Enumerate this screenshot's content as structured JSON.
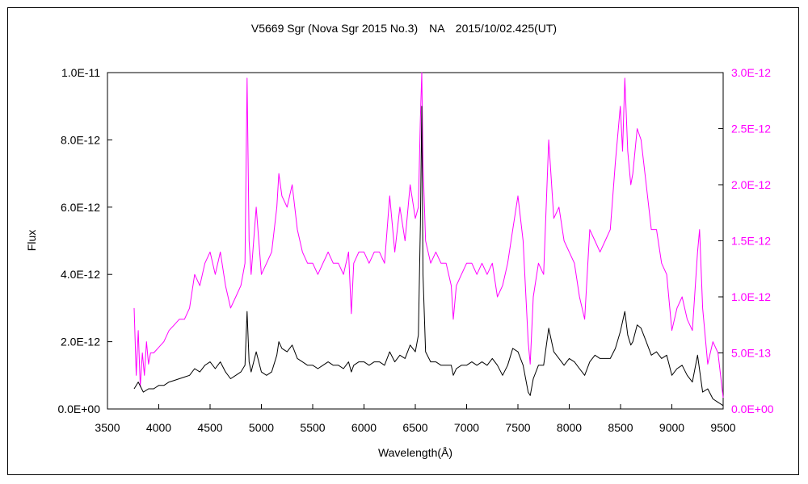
{
  "chart_data": {
    "type": "line",
    "title": "V5669 Sgr (Nova Sgr 2015 No.3)　NA　2015/10/02.425(UT)",
    "xlabel": "Wavelength(Å)",
    "ylabel": "Flux",
    "xlim": [
      3500,
      9500
    ],
    "ylim": [
      0,
      1e-11
    ],
    "y2lim": [
      0,
      3e-12
    ],
    "x_ticks": [
      "3500",
      "4000",
      "4500",
      "5000",
      "5500",
      "6000",
      "6500",
      "7000",
      "7500",
      "8000",
      "8500",
      "9000",
      "9500"
    ],
    "y_ticks": [
      "0.0E+00",
      "2.0E-12",
      "4.0E-12",
      "6.0E-12",
      "8.0E-12",
      "1.0E-11"
    ],
    "y2_ticks": [
      "0.0E+00",
      "5.0E-13",
      "1.0E-12",
      "1.5E-12",
      "2.0E-12",
      "2.5E-12",
      "3.0E-12"
    ],
    "grid": false,
    "legend": "none",
    "series": [
      {
        "axis": "left",
        "color": "#000000",
        "x": [
          3760,
          3800,
          3850,
          3900,
          3950,
          4000,
          4050,
          4100,
          4150,
          4200,
          4250,
          4300,
          4350,
          4400,
          4450,
          4500,
          4550,
          4600,
          4650,
          4700,
          4750,
          4800,
          4840,
          4861,
          4880,
          4900,
          4950,
          5000,
          5050,
          5100,
          5150,
          5170,
          5200,
          5250,
          5300,
          5350,
          5400,
          5450,
          5500,
          5550,
          5600,
          5650,
          5700,
          5750,
          5800,
          5850,
          5876,
          5900,
          5950,
          6000,
          6050,
          6100,
          6150,
          6200,
          6250,
          6300,
          6350,
          6400,
          6450,
          6500,
          6530,
          6550,
          6563,
          6575,
          6600,
          6650,
          6700,
          6750,
          6800,
          6850,
          6870,
          6900,
          6950,
          7000,
          7050,
          7100,
          7150,
          7200,
          7250,
          7300,
          7350,
          7400,
          7450,
          7500,
          7550,
          7600,
          7620,
          7650,
          7700,
          7750,
          7800,
          7850,
          7900,
          7950,
          8000,
          8050,
          8100,
          8150,
          8200,
          8250,
          8300,
          8350,
          8400,
          8450,
          8498,
          8520,
          8542,
          8570,
          8600,
          8620,
          8662,
          8700,
          8750,
          8800,
          8850,
          8900,
          8950,
          9000,
          9050,
          9100,
          9150,
          9200,
          9250,
          9300,
          9350,
          9400,
          9450,
          9500
        ],
        "y": [
          6e-13,
          8e-13,
          5e-13,
          6e-13,
          6e-13,
          7e-13,
          7e-13,
          8e-13,
          8.5e-13,
          9e-13,
          9.5e-13,
          1e-12,
          1.2e-12,
          1.1e-12,
          1.3e-12,
          1.4e-12,
          1.2e-12,
          1.4e-12,
          1.1e-12,
          9e-13,
          1e-12,
          1.1e-12,
          1.3e-12,
          2.9e-12,
          1.4e-12,
          1.1e-12,
          1.7e-12,
          1.1e-12,
          1e-12,
          1.1e-12,
          1.6e-12,
          2e-12,
          1.8e-12,
          1.7e-12,
          1.9e-12,
          1.5e-12,
          1.4e-12,
          1.3e-12,
          1.3e-12,
          1.2e-12,
          1.3e-12,
          1.4e-12,
          1.3e-12,
          1.3e-12,
          1.2e-12,
          1.4e-12,
          1.1e-12,
          1.3e-12,
          1.4e-12,
          1.4e-12,
          1.3e-12,
          1.4e-12,
          1.4e-12,
          1.3e-12,
          1.7e-12,
          1.4e-12,
          1.6e-12,
          1.5e-12,
          1.9e-12,
          1.7e-12,
          2.2e-12,
          5.5e-12,
          9e-12,
          4e-12,
          1.7e-12,
          1.4e-12,
          1.4e-12,
          1.3e-12,
          1.3e-12,
          1.3e-12,
          1e-12,
          1.2e-12,
          1.3e-12,
          1.3e-12,
          1.4e-12,
          1.3e-12,
          1.4e-12,
          1.3e-12,
          1.5e-12,
          1.3e-12,
          1e-12,
          1.3e-12,
          1.8e-12,
          1.7e-12,
          1.3e-12,
          5e-13,
          4e-13,
          9e-13,
          1.3e-12,
          1.3e-12,
          2.4e-12,
          1.7e-12,
          1.5e-12,
          1.3e-12,
          1.5e-12,
          1.4e-12,
          1.2e-12,
          1e-12,
          1.4e-12,
          1.6e-12,
          1.5e-12,
          1.5e-12,
          1.5e-12,
          1.8e-12,
          2.3e-12,
          2.6e-12,
          2.9e-12,
          2.2e-12,
          1.9e-12,
          2e-12,
          2.5e-12,
          2.4e-12,
          2e-12,
          1.6e-12,
          1.7e-12,
          1.5e-12,
          1.6e-12,
          1e-12,
          1.2e-12,
          1.3e-12,
          1e-12,
          8e-13,
          1.6e-12,
          5e-13,
          6e-13,
          3e-13,
          2e-13,
          1e-13
        ]
      },
      {
        "axis": "right",
        "color": "#ff00ff",
        "x": [
          3760,
          3780,
          3800,
          3820,
          3840,
          3860,
          3880,
          3900,
          3920,
          3950,
          4000,
          4050,
          4100,
          4150,
          4200,
          4250,
          4300,
          4350,
          4400,
          4450,
          4500,
          4550,
          4600,
          4650,
          4700,
          4750,
          4800,
          4840,
          4861,
          4880,
          4900,
          4950,
          5000,
          5050,
          5100,
          5150,
          5170,
          5200,
          5250,
          5300,
          5350,
          5400,
          5450,
          5500,
          5550,
          5600,
          5650,
          5700,
          5750,
          5800,
          5850,
          5876,
          5900,
          5950,
          6000,
          6050,
          6100,
          6150,
          6200,
          6250,
          6300,
          6350,
          6400,
          6450,
          6500,
          6530,
          6550,
          6563,
          6575,
          6600,
          6650,
          6700,
          6750,
          6800,
          6850,
          6870,
          6900,
          6950,
          7000,
          7050,
          7100,
          7150,
          7200,
          7250,
          7300,
          7350,
          7400,
          7450,
          7500,
          7550,
          7600,
          7620,
          7650,
          7700,
          7750,
          7800,
          7850,
          7900,
          7950,
          8000,
          8050,
          8100,
          8150,
          8200,
          8250,
          8300,
          8350,
          8400,
          8450,
          8498,
          8520,
          8542,
          8570,
          8600,
          8620,
          8662,
          8700,
          8750,
          8800,
          8850,
          8900,
          8950,
          9000,
          9050,
          9100,
          9150,
          9200,
          9250,
          9270,
          9300,
          9350,
          9400,
          9450,
          9500
        ],
        "y": [
          9e-13,
          3e-13,
          7e-13,
          2e-13,
          5e-13,
          3e-13,
          6e-13,
          4e-13,
          5e-13,
          5e-13,
          5.5e-13,
          6e-13,
          7e-13,
          7.5e-13,
          8e-13,
          8e-13,
          9e-13,
          1.2e-12,
          1.1e-12,
          1.3e-12,
          1.4e-12,
          1.2e-12,
          1.4e-12,
          1.1e-12,
          9e-13,
          1e-12,
          1.1e-12,
          1.3e-12,
          2.95e-12,
          1.5e-12,
          1.2e-12,
          1.8e-12,
          1.2e-12,
          1.3e-12,
          1.4e-12,
          1.8e-12,
          2.1e-12,
          1.9e-12,
          1.8e-12,
          2e-12,
          1.6e-12,
          1.4e-12,
          1.3e-12,
          1.3e-12,
          1.2e-12,
          1.3e-12,
          1.4e-12,
          1.3e-12,
          1.3e-12,
          1.2e-12,
          1.4e-12,
          8.5e-13,
          1.3e-12,
          1.4e-12,
          1.4e-12,
          1.3e-12,
          1.4e-12,
          1.4e-12,
          1.3e-12,
          1.9e-12,
          1.4e-12,
          1.8e-12,
          1.5e-12,
          2e-12,
          1.7e-12,
          1.8e-12,
          2.6e-12,
          3e-12,
          2.2e-12,
          1.5e-12,
          1.3e-12,
          1.4e-12,
          1.3e-12,
          1.3e-12,
          1.1e-12,
          8e-13,
          1.1e-12,
          1.2e-12,
          1.3e-12,
          1.3e-12,
          1.2e-12,
          1.3e-12,
          1.2e-12,
          1.3e-12,
          1e-12,
          1.1e-12,
          1.3e-12,
          1.6e-12,
          1.9e-12,
          1.5e-12,
          6e-13,
          4e-13,
          1e-12,
          1.3e-12,
          1.2e-12,
          2.4e-12,
          1.7e-12,
          1.8e-12,
          1.5e-12,
          1.4e-12,
          1.3e-12,
          1e-12,
          8e-13,
          1.6e-12,
          1.5e-12,
          1.4e-12,
          1.5e-12,
          1.6e-12,
          2.2e-12,
          2.7e-12,
          2.3e-12,
          2.95e-12,
          2.3e-12,
          2e-12,
          2.1e-12,
          2.5e-12,
          2.4e-12,
          2e-12,
          1.6e-12,
          1.6e-12,
          1.3e-12,
          1.2e-12,
          7e-13,
          9e-13,
          1e-12,
          8e-13,
          7e-13,
          1.4e-12,
          1.6e-12,
          9e-13,
          4e-13,
          6e-13,
          5e-13,
          1e-13
        ]
      }
    ]
  }
}
